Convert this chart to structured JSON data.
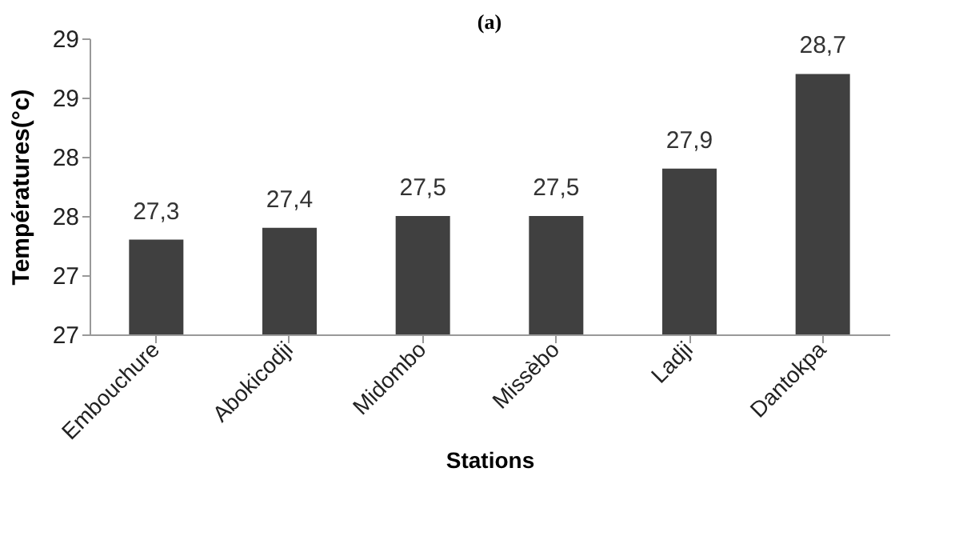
{
  "chart_data": {
    "type": "bar",
    "title": "(a)",
    "xlabel": "Stations",
    "ylabel": "Températures(°c)",
    "categories": [
      "Embouchure",
      "Abokicodji",
      "Midombo",
      "Missèbo",
      "Ladji",
      "Dantokpa"
    ],
    "values": [
      27.3,
      27.4,
      27.5,
      27.5,
      27.9,
      28.7
    ],
    "value_labels": [
      "27,3",
      "27,4",
      "27,5",
      "27,5",
      "27,9",
      "28,7"
    ],
    "color": "#404040",
    "ylim": [
      26.5,
      29
    ],
    "yticks": [
      {
        "value": 26.5,
        "label": "27"
      },
      {
        "value": 27,
        "label": "27"
      },
      {
        "value": 27.5,
        "label": "28"
      },
      {
        "value": 28,
        "label": "28"
      },
      {
        "value": 28.5,
        "label": "29"
      },
      {
        "value": 29,
        "label": "29"
      }
    ],
    "grid": false
  }
}
